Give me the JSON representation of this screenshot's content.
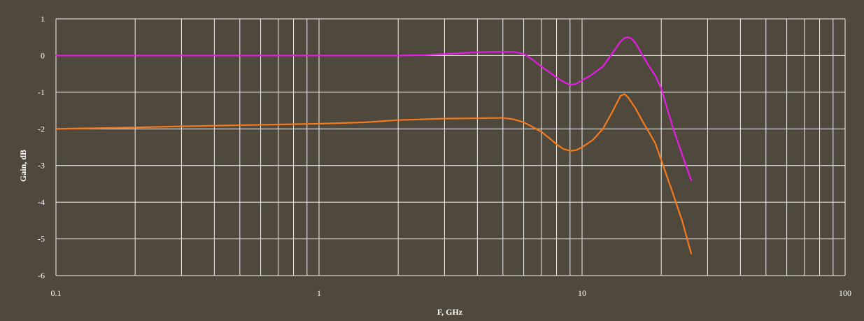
{
  "colors": {
    "background": "#4f483d",
    "grid": "#f2f2f2",
    "series_magenta": "#e51ce5",
    "series_orange": "#f47a1d",
    "text": "#ffffff"
  },
  "chart_data": {
    "type": "line",
    "xlabel": "F, GHz",
    "ylabel": "Gain, dB",
    "x_scale": "log",
    "xlim": [
      0.1,
      100
    ],
    "ylim": [
      -6,
      1
    ],
    "grid": true,
    "x_tick_labels": [
      "0.1",
      "1",
      "10",
      "100"
    ],
    "y_tick_labels": [
      "1",
      "0",
      "-1",
      "-2",
      "-3",
      "-4",
      "-5",
      "-6"
    ],
    "series": [
      {
        "color": "#e51ce5",
        "x": [
          0.1,
          0.2,
          0.5,
          1,
          2,
          2.5,
          3,
          3.5,
          4,
          4.5,
          5,
          5.5,
          6,
          6.5,
          7,
          7.5,
          8,
          8.5,
          9,
          9.5,
          10,
          11,
          12,
          13,
          14,
          14.5,
          15,
          15.5,
          16,
          17,
          18,
          19,
          20,
          22,
          24,
          26
        ],
        "y": [
          0,
          0,
          0,
          0,
          0,
          0.01,
          0.04,
          0.07,
          0.09,
          0.1,
          0.1,
          0.1,
          0.05,
          -0.12,
          -0.3,
          -0.45,
          -0.6,
          -0.72,
          -0.8,
          -0.77,
          -0.68,
          -0.5,
          -0.3,
          0.05,
          0.38,
          0.48,
          0.5,
          0.45,
          0.33,
          0.0,
          -0.3,
          -0.55,
          -0.9,
          -1.9,
          -2.7,
          -3.4
        ]
      },
      {
        "color": "#f47a1d",
        "x": [
          0.1,
          0.2,
          0.3,
          0.5,
          0.7,
          1,
          1.5,
          2,
          3,
          4,
          5,
          5.5,
          6,
          6.5,
          7,
          7.5,
          8,
          8.5,
          9,
          9.5,
          10,
          11,
          12,
          13,
          14,
          14.5,
          15,
          16,
          17,
          18,
          19,
          20,
          22,
          24,
          26
        ],
        "y": [
          -2.0,
          -1.96,
          -1.93,
          -1.9,
          -1.88,
          -1.86,
          -1.82,
          -1.76,
          -1.72,
          -1.71,
          -1.7,
          -1.74,
          -1.82,
          -1.95,
          -2.08,
          -2.25,
          -2.42,
          -2.55,
          -2.6,
          -2.58,
          -2.5,
          -2.3,
          -2.0,
          -1.55,
          -1.1,
          -1.05,
          -1.15,
          -1.45,
          -1.8,
          -2.1,
          -2.4,
          -2.85,
          -3.7,
          -4.5,
          -5.4
        ]
      }
    ]
  }
}
